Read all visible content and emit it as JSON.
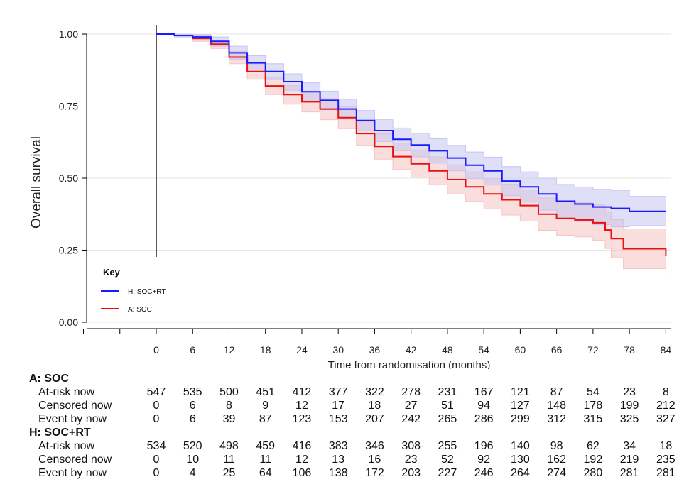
{
  "chart_data": {
    "type": "line",
    "step": true,
    "ylabel": "Overall survival",
    "xlabel": "Time from randomisation (months)",
    "xlim": [
      -14,
      84
    ],
    "ylim": [
      0,
      1
    ],
    "x_ticks": [
      0,
      6,
      12,
      18,
      24,
      30,
      36,
      42,
      48,
      54,
      60,
      66,
      72,
      78,
      84
    ],
    "extra_x_ticks": [
      -6,
      -12
    ],
    "y_ticks": [
      "0.00",
      "0.25",
      "0.50",
      "0.75",
      "1.00"
    ],
    "y_tick_values": [
      0,
      0.25,
      0.5,
      0.75,
      1.0
    ],
    "grid": "horizontal",
    "legend": {
      "title": "Key",
      "placement": "bottom-left",
      "entries": [
        {
          "label": "H: SOC+RT",
          "color": "#1a1aff"
        },
        {
          "label": "A: SOC",
          "color": "#e81010"
        }
      ]
    },
    "series": [
      {
        "name": "H: SOC+RT",
        "color": "#1a1aff",
        "band_color": "#c5c5f2",
        "x": [
          0,
          3,
          6,
          9,
          12,
          15,
          18,
          21,
          24,
          27,
          30,
          33,
          36,
          39,
          42,
          45,
          48,
          51,
          54,
          57,
          60,
          63,
          66,
          69,
          72,
          75,
          78,
          81,
          84
        ],
        "y": [
          1.0,
          0.995,
          0.99,
          0.975,
          0.935,
          0.9,
          0.87,
          0.835,
          0.8,
          0.77,
          0.74,
          0.7,
          0.665,
          0.635,
          0.615,
          0.595,
          0.57,
          0.545,
          0.525,
          0.49,
          0.47,
          0.445,
          0.42,
          0.41,
          0.4,
          0.395,
          0.385,
          0.385,
          0.385
        ],
        "lower": [
          1.0,
          0.99,
          0.98,
          0.958,
          0.912,
          0.875,
          0.842,
          0.805,
          0.768,
          0.737,
          0.705,
          0.664,
          0.627,
          0.595,
          0.574,
          0.552,
          0.525,
          0.498,
          0.476,
          0.439,
          0.417,
          0.389,
          0.362,
          0.35,
          0.338,
          0.331,
          0.335,
          0.335,
          0.335
        ],
        "upper": [
          1.0,
          1.0,
          0.998,
          0.99,
          0.958,
          0.925,
          0.897,
          0.862,
          0.831,
          0.802,
          0.774,
          0.735,
          0.703,
          0.674,
          0.656,
          0.637,
          0.614,
          0.591,
          0.573,
          0.54,
          0.522,
          0.5,
          0.478,
          0.469,
          0.461,
          0.458,
          0.437,
          0.437,
          0.437
        ]
      },
      {
        "name": "A: SOC",
        "color": "#e81010",
        "band_color": "#f6c2c2",
        "x": [
          0,
          3,
          6,
          9,
          12,
          15,
          18,
          21,
          24,
          27,
          30,
          33,
          36,
          39,
          42,
          45,
          48,
          51,
          54,
          57,
          60,
          63,
          66,
          69,
          72,
          74,
          75,
          77,
          80,
          84
        ],
        "y": [
          1.0,
          0.995,
          0.985,
          0.965,
          0.92,
          0.87,
          0.82,
          0.79,
          0.765,
          0.74,
          0.71,
          0.655,
          0.61,
          0.575,
          0.55,
          0.525,
          0.495,
          0.47,
          0.445,
          0.425,
          0.405,
          0.375,
          0.36,
          0.355,
          0.345,
          0.32,
          0.29,
          0.255,
          0.255,
          0.23
        ],
        "lower": [
          1.0,
          0.99,
          0.975,
          0.95,
          0.897,
          0.843,
          0.79,
          0.757,
          0.73,
          0.703,
          0.672,
          0.614,
          0.566,
          0.53,
          0.503,
          0.477,
          0.445,
          0.419,
          0.393,
          0.372,
          0.351,
          0.319,
          0.302,
          0.296,
          0.284,
          0.256,
          0.224,
          0.186,
          0.186,
          0.165
        ],
        "upper": [
          1.0,
          1.0,
          0.995,
          0.978,
          0.94,
          0.895,
          0.849,
          0.821,
          0.798,
          0.776,
          0.748,
          0.696,
          0.654,
          0.621,
          0.598,
          0.574,
          0.546,
          0.522,
          0.498,
          0.479,
          0.459,
          0.431,
          0.419,
          0.415,
          0.407,
          0.384,
          0.356,
          0.324,
          0.324,
          0.3
        ]
      }
    ],
    "risk_table": {
      "times": [
        0,
        6,
        12,
        18,
        24,
        30,
        36,
        42,
        48,
        54,
        60,
        66,
        72,
        78,
        84
      ],
      "groups": [
        {
          "name": "A: SOC",
          "rows": [
            {
              "label": "At-risk now",
              "values": [
                "547",
                "535",
                "500",
                "451",
                "412",
                "377",
                "322",
                "278",
                "231",
                "167",
                "121",
                "87",
                "54",
                "23",
                "8"
              ]
            },
            {
              "label": "Censored now",
              "values": [
                "0",
                "6",
                "8",
                "9",
                "12",
                "17",
                "18",
                "27",
                "51",
                "94",
                "127",
                "148",
                "178",
                "199",
                "212"
              ]
            },
            {
              "label": "Event by now",
              "values": [
                "0",
                "6",
                "39",
                "87",
                "123",
                "153",
                "207",
                "242",
                "265",
                "286",
                "299",
                "312",
                "315",
                "325",
                "327"
              ]
            }
          ]
        },
        {
          "name": "H: SOC+RT",
          "rows": [
            {
              "label": "At-risk now",
              "values": [
                "534",
                "520",
                "498",
                "459",
                "416",
                "383",
                "346",
                "308",
                "255",
                "196",
                "140",
                "98",
                "62",
                "34",
                "18"
              ]
            },
            {
              "label": "Censored now",
              "values": [
                "0",
                "10",
                "11",
                "11",
                "12",
                "13",
                "16",
                "23",
                "52",
                "92",
                "130",
                "162",
                "192",
                "219",
                "235"
              ]
            },
            {
              "label": "Event by now",
              "values": [
                "0",
                "4",
                "25",
                "64",
                "106",
                "138",
                "172",
                "203",
                "227",
                "246",
                "264",
                "274",
                "280",
                "281",
                "281"
              ]
            }
          ]
        }
      ]
    }
  }
}
